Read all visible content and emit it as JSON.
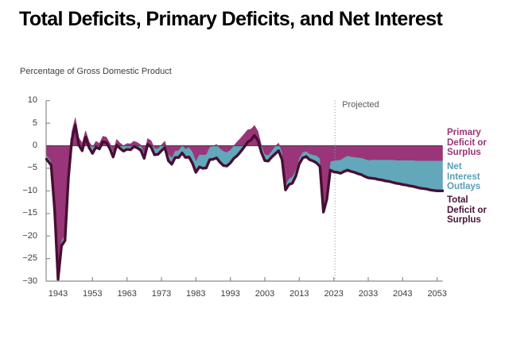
{
  "page": {
    "title": "Total Deficits, Primary Deficits, and Net Interest",
    "units_label": "Percentage of Gross Domestic Product"
  },
  "chart_data": {
    "type": "area",
    "title": "Total Deficits, Primary Deficits, and Net Interest",
    "ylabel": "Percentage of Gross Domestic Product",
    "xlabel": "",
    "ylim": [
      -30,
      10
    ],
    "xlim": [
      1939.7,
      2054.7
    ],
    "grid": false,
    "legend_position": "right",
    "projected_label": "Projected",
    "projected_divider_year": 2023.35,
    "x_ticks": [
      1943,
      1953,
      1963,
      1973,
      1983,
      1993,
      2003,
      2013,
      2023,
      2033,
      2043,
      2053
    ],
    "y_ticks": [
      10,
      5,
      0,
      -5,
      -10,
      -15,
      -20,
      -25,
      -30
    ],
    "year_start": 1940,
    "year_end": 2053,
    "series": [
      {
        "name": "Primary Deficit or Surplus",
        "color": "#9a3579",
        "values": [
          -2.1,
          -3.4,
          -13.5,
          -28.7,
          -21.0,
          -19.5,
          -5.4,
          3.1,
          6.2,
          1.8,
          0.6,
          3.3,
          0.9,
          -0.3,
          1.0,
          0.5,
          2.1,
          1.9,
          0.6,
          -1.3,
          1.4,
          0.6,
          0.0,
          0.5,
          0.4,
          1.0,
          0.7,
          0.2,
          -1.6,
          1.6,
          1.1,
          -0.6,
          -0.6,
          0.2,
          1.0,
          -1.9,
          -2.6,
          -1.1,
          -1.0,
          0.1,
          -0.7,
          -0.3,
          -1.3,
          -3.3,
          -1.9,
          -2.0,
          -1.9,
          -0.2,
          -0.1,
          0.3,
          -0.6,
          -1.2,
          -1.4,
          -0.9,
          0.0,
          0.9,
          1.7,
          2.6,
          3.5,
          3.7,
          4.5,
          3.2,
          0.1,
          -1.9,
          -2.1,
          -1.1,
          -0.1,
          0.6,
          -1.4,
          -8.5,
          -7.3,
          -6.8,
          -5.3,
          -2.7,
          -1.4,
          -1.2,
          -1.8,
          -2.0,
          -2.2,
          -2.8,
          -13.1,
          -10.3,
          -3.5,
          -3.3,
          -3.2,
          -3.1,
          -2.6,
          -2.2,
          -2.4,
          -2.5,
          -2.6,
          -2.7,
          -2.9,
          -3.2,
          -3.1,
          -3.1,
          -3.1,
          -3.1,
          -3.1,
          -3.1,
          -3.1,
          -3.2,
          -3.2,
          -3.2,
          -3.2,
          -3.2,
          -3.2,
          -3.3,
          -3.3,
          -3.3,
          -3.3,
          -3.3,
          -3.3,
          -3.3
        ]
      },
      {
        "name": "Total Deficit or Surplus",
        "color": "#470f33",
        "values": [
          -3.0,
          -4.3,
          -14.2,
          -29.6,
          -22.2,
          -21.0,
          -7.2,
          1.3,
          4.6,
          0.2,
          -1.1,
          1.9,
          -0.4,
          -1.7,
          -0.3,
          -0.7,
          0.9,
          0.7,
          -0.6,
          -2.5,
          0.1,
          -0.6,
          -1.2,
          -0.8,
          -0.9,
          -0.2,
          -0.5,
          -1.0,
          -2.8,
          0.3,
          -0.3,
          -2.0,
          -1.9,
          -1.1,
          -0.4,
          -3.3,
          -4.1,
          -2.6,
          -2.6,
          -1.6,
          -2.6,
          -2.5,
          -3.9,
          -5.9,
          -4.7,
          -5.0,
          -4.9,
          -3.1,
          -3.0,
          -2.7,
          -3.7,
          -4.4,
          -4.5,
          -3.8,
          -2.8,
          -2.2,
          -1.3,
          -0.3,
          0.8,
          1.3,
          2.3,
          1.2,
          -1.5,
          -3.3,
          -3.4,
          -2.5,
          -1.8,
          -1.1,
          -3.1,
          -9.8,
          -8.6,
          -8.3,
          -6.7,
          -4.0,
          -2.7,
          -2.4,
          -3.1,
          -3.4,
          -3.8,
          -4.6,
          -14.7,
          -11.8,
          -5.4,
          -5.8,
          -5.9,
          -6.1,
          -5.7,
          -5.4,
          -5.7,
          -5.9,
          -6.2,
          -6.4,
          -6.8,
          -7.1,
          -7.2,
          -7.3,
          -7.5,
          -7.6,
          -7.8,
          -7.9,
          -8.1,
          -8.3,
          -8.4,
          -8.6,
          -8.7,
          -8.9,
          -9.0,
          -9.2,
          -9.4,
          -9.5,
          -9.6,
          -9.8,
          -9.9,
          -10.0
        ]
      },
      {
        "name": "Net Interest Outlays",
        "color": "#62a7ba",
        "band_between": [
          "Primary Deficit or Surplus",
          "Total Deficit or Surplus"
        ]
      }
    ]
  },
  "legend": {
    "primary": {
      "label": "Primary\nDeficit or\nSurplus",
      "color": "#993377"
    },
    "net_interest": {
      "label": "Net\nInterest\nOutlays",
      "color": "#5b9db5"
    },
    "total": {
      "label": "Total\nDeficit or\nSurplus",
      "color": "#461236"
    }
  },
  "colors": {
    "primary_area": "#9a3579",
    "net_interest_area": "#62a7ba",
    "total_line": "#470f33",
    "zero_line": "#4a4a4a",
    "axis": "#8c8c8c",
    "tick_text": "#3d3d3d",
    "projected_text": "#5a5a5a",
    "divider": "#9a9a9a",
    "background": "#ffffff"
  }
}
